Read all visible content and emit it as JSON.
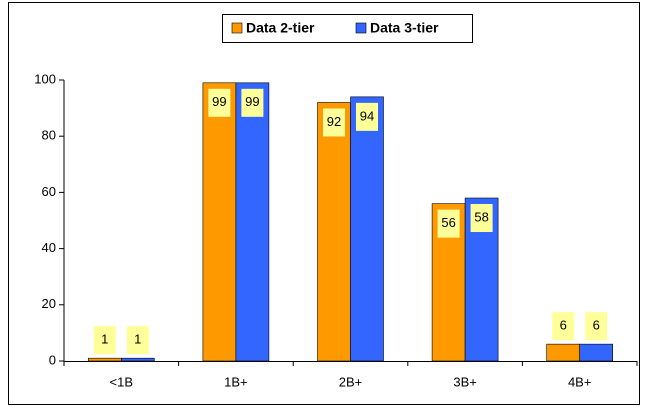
{
  "chart_data": {
    "type": "bar",
    "categories": [
      "<1B",
      "1B+",
      "2B+",
      "3B+",
      "4B+"
    ],
    "series": [
      {
        "name": "Data 2-tier",
        "color": "#ff9900",
        "values": [
          1,
          99,
          92,
          56,
          6
        ]
      },
      {
        "name": "Data 3-tier",
        "color": "#3366ff",
        "values": [
          1,
          99,
          94,
          58,
          6
        ]
      }
    ],
    "ylim": [
      0,
      100
    ],
    "yticks": [
      0,
      20,
      40,
      60,
      80,
      100
    ],
    "grid": false,
    "legend": "top",
    "label_color": "#ffff99"
  }
}
